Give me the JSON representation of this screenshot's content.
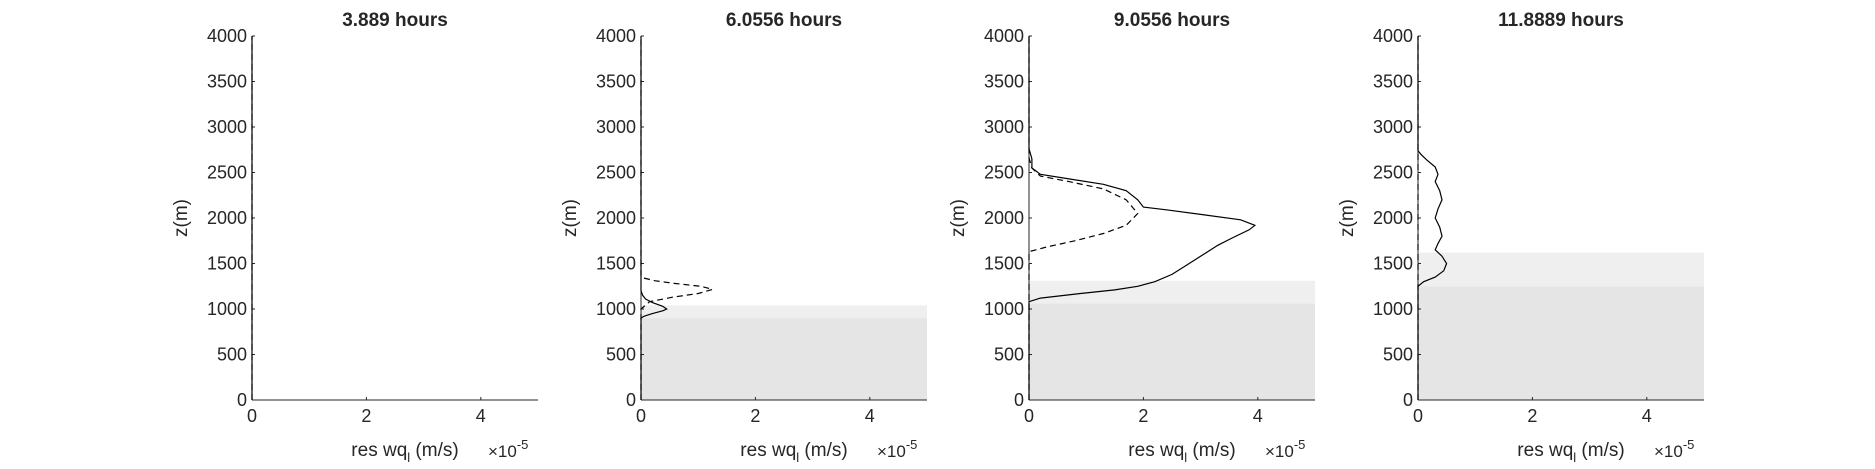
{
  "figure": {
    "background": "#ffffff",
    "axis_color": "#262626",
    "shade_light": "#efefef",
    "shade_dark": "#e5e5e5",
    "line_color": "#000000"
  },
  "chart_data": [
    {
      "type": "line",
      "title": "3.889 hours",
      "xlabel_main": "res wq",
      "xlabel_sub": "l",
      "xlabel_unit": " (m/s)",
      "exponent_base": "×10",
      "exponent_power": "-5",
      "ylabel": "z(m)",
      "xlim": [
        0,
        5
      ],
      "ylim": [
        0,
        4000
      ],
      "xticks": [
        0,
        2,
        4
      ],
      "yticks": [
        0,
        500,
        1000,
        1500,
        2000,
        2500,
        3000,
        3500,
        4000
      ],
      "shading": [],
      "series": [
        {
          "style": "solid",
          "points": [
            [
              0,
              0
            ],
            [
              0,
              4000
            ]
          ]
        },
        {
          "style": "dashed",
          "points": [
            [
              0,
              0
            ],
            [
              0,
              4000
            ]
          ]
        }
      ]
    },
    {
      "type": "line",
      "title": "6.0556 hours",
      "xlabel_main": "res wq",
      "xlabel_sub": "l",
      "xlabel_unit": " (m/s)",
      "exponent_base": "×10",
      "exponent_power": "-5",
      "ylabel": "z(m)",
      "xlim": [
        0,
        5
      ],
      "ylim": [
        0,
        4000
      ],
      "xticks": [
        0,
        2,
        4
      ],
      "yticks": [
        0,
        500,
        1000,
        1500,
        2000,
        2500,
        3000,
        3500,
        4000
      ],
      "shading": [
        {
          "tone": "light",
          "z0": 900,
          "z1": 1040
        },
        {
          "tone": "dark",
          "z0": 0,
          "z1": 900
        }
      ],
      "series": [
        {
          "style": "solid",
          "points": [
            [
              0,
              0
            ],
            [
              0,
              900
            ],
            [
              0.05,
              920
            ],
            [
              0.2,
              950
            ],
            [
              0.38,
              980
            ],
            [
              0.45,
              1000
            ],
            [
              0.38,
              1030
            ],
            [
              0.2,
              1070
            ],
            [
              0.08,
              1110
            ],
            [
              0.03,
              1150
            ],
            [
              0,
              1200
            ],
            [
              0,
              4000
            ]
          ]
        },
        {
          "style": "dashed",
          "points": [
            [
              0,
              0
            ],
            [
              0,
              1000
            ],
            [
              0.15,
              1080
            ],
            [
              0.55,
              1130
            ],
            [
              1.0,
              1170
            ],
            [
              1.25,
              1215
            ],
            [
              1.05,
              1250
            ],
            [
              0.6,
              1280
            ],
            [
              0.25,
              1310
            ],
            [
              0.05,
              1340
            ],
            [
              0,
              1360
            ],
            [
              0,
              4000
            ]
          ]
        }
      ]
    },
    {
      "type": "line",
      "title": "9.0556 hours",
      "xlabel_main": "res wq",
      "xlabel_sub": "l",
      "xlabel_unit": " (m/s)",
      "exponent_base": "×10",
      "exponent_power": "-5",
      "ylabel": "z(m)",
      "xlim": [
        0,
        5
      ],
      "ylim": [
        0,
        4000
      ],
      "xticks": [
        0,
        2,
        4
      ],
      "yticks": [
        0,
        500,
        1000,
        1500,
        2000,
        2500,
        3000,
        3500,
        4000
      ],
      "shading": [
        {
          "tone": "light",
          "z0": 1060,
          "z1": 1310
        },
        {
          "tone": "dark",
          "z0": 0,
          "z1": 1060
        }
      ],
      "series": [
        {
          "style": "solid",
          "points": [
            [
              0,
              0
            ],
            [
              0,
              1080
            ],
            [
              0.2,
              1120
            ],
            [
              0.9,
              1170
            ],
            [
              1.5,
              1210
            ],
            [
              1.9,
              1250
            ],
            [
              2.2,
              1300
            ],
            [
              2.5,
              1380
            ],
            [
              2.8,
              1500
            ],
            [
              3.1,
              1620
            ],
            [
              3.3,
              1700
            ],
            [
              3.55,
              1780
            ],
            [
              3.85,
              1870
            ],
            [
              3.95,
              1920
            ],
            [
              3.7,
              1980
            ],
            [
              3.0,
              2040
            ],
            [
              2.4,
              2090
            ],
            [
              2.0,
              2120
            ],
            [
              1.9,
              2200
            ],
            [
              1.7,
              2300
            ],
            [
              1.3,
              2370
            ],
            [
              0.7,
              2430
            ],
            [
              0.2,
              2480
            ],
            [
              0.05,
              2550
            ],
            [
              0.05,
              2650
            ],
            [
              0,
              2760
            ],
            [
              0,
              4000
            ]
          ]
        },
        {
          "style": "dashed",
          "points": [
            [
              0,
              0
            ],
            [
              0,
              1630
            ],
            [
              0.3,
              1680
            ],
            [
              0.8,
              1750
            ],
            [
              1.3,
              1830
            ],
            [
              1.7,
              1920
            ],
            [
              1.9,
              2050
            ],
            [
              1.7,
              2200
            ],
            [
              1.3,
              2320
            ],
            [
              0.7,
              2400
            ],
            [
              0.2,
              2460
            ],
            [
              0.05,
              2550
            ],
            [
              0,
              2660
            ],
            [
              0,
              4000
            ]
          ]
        }
      ]
    },
    {
      "type": "line",
      "title": "11.8889 hours",
      "xlabel_main": "res wq",
      "xlabel_sub": "l",
      "xlabel_unit": " (m/s)",
      "exponent_base": "×10",
      "exponent_power": "-5",
      "ylabel": "z(m)",
      "xlim": [
        0,
        5
      ],
      "ylim": [
        0,
        4000
      ],
      "xticks": [
        0,
        2,
        4
      ],
      "yticks": [
        0,
        500,
        1000,
        1500,
        2000,
        2500,
        3000,
        3500,
        4000
      ],
      "shading": [
        {
          "tone": "light",
          "z0": 1250,
          "z1": 1620
        },
        {
          "tone": "dark",
          "z0": 0,
          "z1": 1250
        }
      ],
      "series": [
        {
          "style": "solid",
          "points": [
            [
              0,
              0
            ],
            [
              0,
              1250
            ],
            [
              0.1,
              1300
            ],
            [
              0.3,
              1350
            ],
            [
              0.45,
              1420
            ],
            [
              0.5,
              1500
            ],
            [
              0.42,
              1580
            ],
            [
              0.3,
              1650
            ],
            [
              0.35,
              1720
            ],
            [
              0.42,
              1800
            ],
            [
              0.38,
              1900
            ],
            [
              0.3,
              2000
            ],
            [
              0.35,
              2100
            ],
            [
              0.42,
              2200
            ],
            [
              0.38,
              2300
            ],
            [
              0.3,
              2400
            ],
            [
              0.35,
              2480
            ],
            [
              0.3,
              2560
            ],
            [
              0.15,
              2640
            ],
            [
              0.05,
              2700
            ],
            [
              0,
              2740
            ],
            [
              0,
              4000
            ]
          ]
        },
        {
          "style": "dashed",
          "points": [
            [
              0,
              0
            ],
            [
              0,
              4000
            ]
          ]
        }
      ]
    }
  ]
}
